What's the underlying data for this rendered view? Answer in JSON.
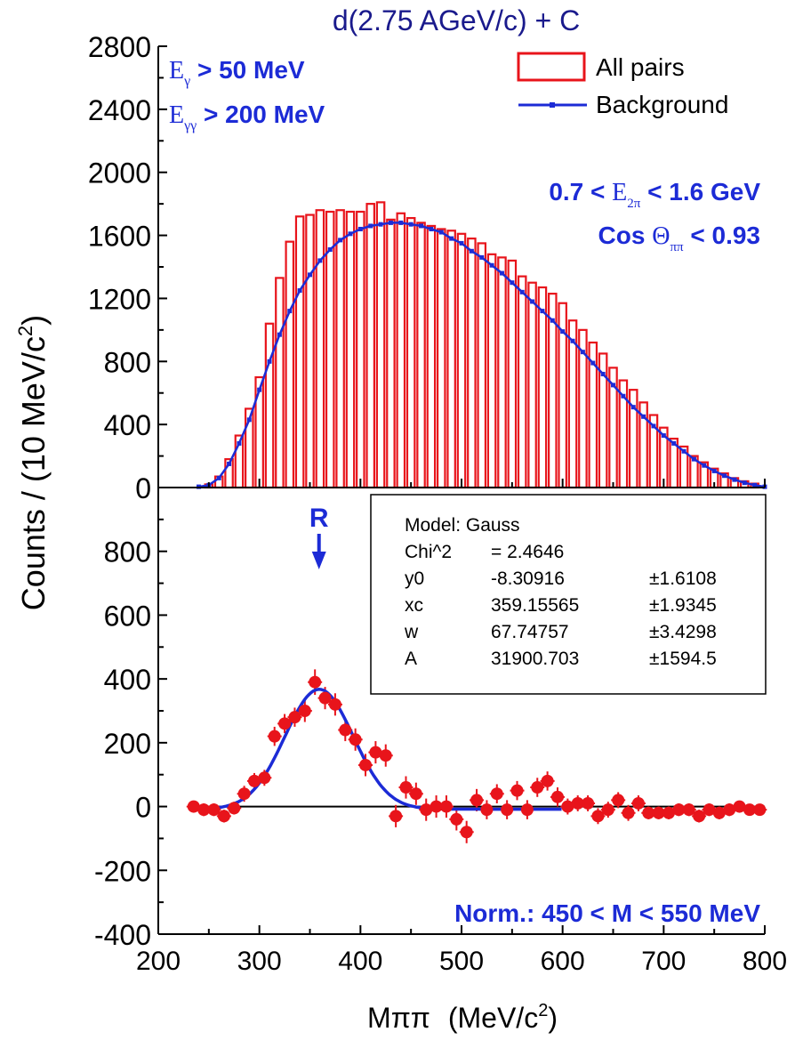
{
  "title": "d(2.75 AGeV/c) + C",
  "axis_label_x": {
    "main": "Mππ",
    "unit_open": "(MeV/c",
    "unit_sup": "2",
    "unit_close": ")"
  },
  "axis_label_y": {
    "main": "Counts / (10 MeV/c",
    "sup": "2",
    "close": ")"
  },
  "colors": {
    "blue": "#1c2bd6",
    "red": "#e8141b",
    "title": "#1a1a8c",
    "black": "#000000"
  },
  "chart_data": [
    {
      "type": "bar",
      "panel": "top",
      "xlim": [
        200,
        800
      ],
      "ylim": [
        0,
        2800
      ],
      "yticks": [
        0,
        400,
        800,
        1200,
        1600,
        2000,
        2400,
        2800
      ],
      "legend": {
        "position": "top-right",
        "items": [
          {
            "label": "All pairs",
            "style": "red-box"
          },
          {
            "label": "Background",
            "style": "blue-line"
          }
        ]
      },
      "cuts_left": [
        {
          "sym": "E",
          "sub": "γ",
          "rest": " > 50 MeV"
        },
        {
          "sym": "E",
          "sub": "γγ",
          "rest": " > 200 MeV"
        }
      ],
      "cuts_right": [
        {
          "pre": "0.7 < ",
          "sym": "E",
          "sub": "2π",
          "rest": " < 1.6 GeV"
        },
        {
          "pre": "Cos ",
          "sym": "Θ",
          "sub": "ππ",
          "rest": "  <  0.93"
        }
      ],
      "bin_width": 10,
      "series": [
        {
          "name": "All pairs",
          "x": [
            250,
            260,
            270,
            280,
            290,
            300,
            310,
            320,
            330,
            340,
            350,
            360,
            370,
            380,
            390,
            400,
            410,
            420,
            430,
            440,
            450,
            460,
            470,
            480,
            490,
            500,
            510,
            520,
            530,
            540,
            550,
            560,
            570,
            580,
            590,
            600,
            610,
            620,
            630,
            640,
            650,
            660,
            670,
            680,
            690,
            700,
            710,
            720,
            730,
            740,
            750,
            760,
            770,
            780,
            790
          ],
          "values": [
            20,
            70,
            180,
            330,
            500,
            700,
            1040,
            1330,
            1560,
            1720,
            1730,
            1760,
            1750,
            1760,
            1750,
            1750,
            1800,
            1810,
            1700,
            1740,
            1710,
            1680,
            1660,
            1640,
            1630,
            1610,
            1580,
            1550,
            1480,
            1460,
            1440,
            1340,
            1300,
            1270,
            1230,
            1170,
            1060,
            1000,
            920,
            850,
            760,
            680,
            620,
            540,
            460,
            380,
            310,
            260,
            200,
            160,
            120,
            90,
            60,
            40,
            25
          ]
        },
        {
          "name": "Background",
          "x": [
            240,
            250,
            260,
            270,
            280,
            290,
            300,
            310,
            320,
            330,
            340,
            350,
            360,
            370,
            380,
            390,
            400,
            410,
            420,
            430,
            440,
            450,
            460,
            470,
            480,
            490,
            500,
            510,
            520,
            530,
            540,
            550,
            560,
            570,
            580,
            590,
            600,
            610,
            620,
            630,
            640,
            650,
            660,
            670,
            680,
            690,
            700,
            710,
            720,
            730,
            740,
            750,
            760,
            770,
            780,
            790,
            800
          ],
          "values": [
            5,
            15,
            60,
            150,
            280,
            430,
            620,
            800,
            970,
            1120,
            1250,
            1350,
            1440,
            1510,
            1570,
            1610,
            1640,
            1660,
            1670,
            1680,
            1680,
            1670,
            1660,
            1640,
            1620,
            1580,
            1550,
            1500,
            1460,
            1410,
            1360,
            1300,
            1240,
            1180,
            1120,
            1060,
            990,
            930,
            860,
            790,
            720,
            650,
            580,
            510,
            450,
            390,
            330,
            280,
            230,
            180,
            140,
            105,
            75,
            50,
            30,
            15,
            5
          ]
        }
      ]
    },
    {
      "type": "scatter",
      "panel": "bottom",
      "xlim": [
        200,
        800
      ],
      "ylim": [
        -400,
        1000
      ],
      "yticks": [
        -400,
        -200,
        0,
        200,
        400,
        600,
        800
      ],
      "xticks": [
        200,
        300,
        400,
        500,
        600,
        700,
        800
      ],
      "arrow_label": "R",
      "arrow_x": 359,
      "norm_text": "Norm.: 450 < M < 550 MeV",
      "fit_box": {
        "rows": [
          [
            "Model: Gauss",
            "",
            ""
          ],
          [
            "Chi^2",
            "=  2.4646",
            ""
          ],
          [
            "y0",
            "-8.30916",
            "±1.6108"
          ],
          [
            "xc",
            "359.15565",
            "±1.9345"
          ],
          [
            "w",
            "67.74757",
            "±3.4298"
          ],
          [
            "A",
            "31900.703",
            "±1594.5"
          ]
        ]
      },
      "fit": {
        "model": "Gauss",
        "y0": -8.30916,
        "xc": 359.15565,
        "w": 67.74757,
        "A": 31900.703,
        "xrange": [
          245,
          600
        ]
      },
      "series": [
        {
          "name": "Data",
          "x": [
            235,
            245,
            255,
            265,
            275,
            285,
            295,
            305,
            315,
            325,
            335,
            345,
            355,
            365,
            375,
            385,
            395,
            405,
            415,
            425,
            435,
            445,
            455,
            465,
            475,
            485,
            495,
            505,
            515,
            525,
            535,
            545,
            555,
            565,
            575,
            585,
            595,
            605,
            615,
            625,
            635,
            645,
            655,
            665,
            675,
            685,
            695,
            705,
            715,
            725,
            735,
            745,
            755,
            765,
            775,
            785,
            795
          ],
          "values": [
            0,
            -10,
            -10,
            -30,
            -5,
            40,
            80,
            90,
            220,
            260,
            280,
            300,
            390,
            340,
            320,
            240,
            210,
            130,
            170,
            160,
            -30,
            60,
            40,
            -10,
            0,
            0,
            -40,
            -80,
            20,
            -10,
            40,
            -10,
            50,
            -10,
            60,
            80,
            30,
            0,
            10,
            10,
            -30,
            -10,
            20,
            -20,
            10,
            -20,
            -20,
            -20,
            -10,
            -10,
            -30,
            -10,
            -20,
            -10,
            0,
            -10,
            -10
          ],
          "errors": [
            15,
            20,
            20,
            20,
            20,
            25,
            25,
            25,
            30,
            30,
            30,
            35,
            40,
            35,
            35,
            35,
            35,
            35,
            35,
            35,
            35,
            35,
            35,
            35,
            35,
            35,
            35,
            35,
            35,
            30,
            30,
            30,
            30,
            30,
            30,
            30,
            30,
            25,
            25,
            25,
            25,
            25,
            25,
            25,
            25,
            20,
            20,
            20,
            20,
            20,
            20,
            20,
            20,
            20,
            15,
            15,
            15
          ]
        }
      ]
    }
  ]
}
